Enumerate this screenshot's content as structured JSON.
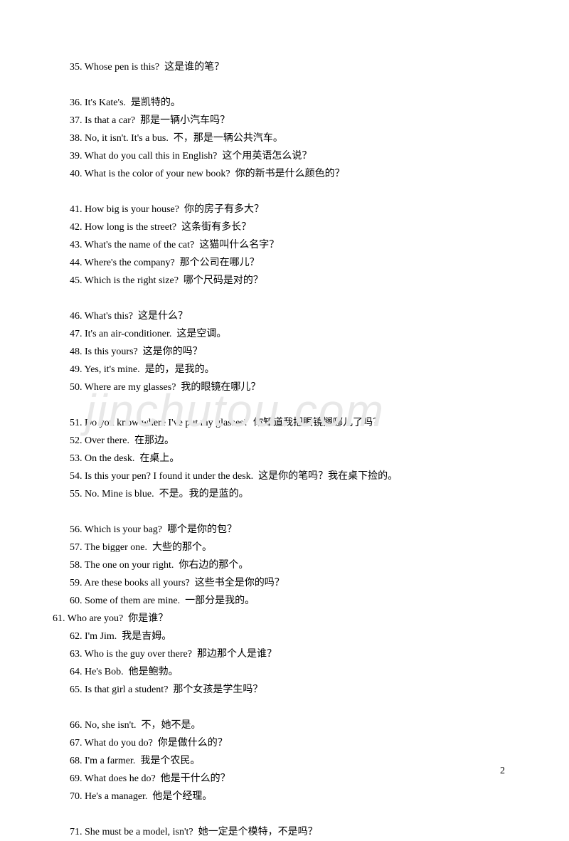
{
  "watermark": "jinchutou.com",
  "pageNumber": "2",
  "groups": [
    {
      "lines": [
        {
          "text": "35. Whose pen is this?  这是谁的笔？",
          "indent": true
        }
      ]
    },
    {
      "lines": [
        {
          "text": "36. It's Kate's.  是凯特的。",
          "indent": true
        },
        {
          "text": "37. Is that a car?  那是一辆小汽车吗？",
          "indent": true
        },
        {
          "text": "38. No, it isn't. It's a bus.  不，那是一辆公共汽车。",
          "indent": true
        },
        {
          "text": "39. What do you call this in English?  这个用英语怎么说？",
          "indent": true
        },
        {
          "text": "40. What is the color of your new book?  你的新书是什么颜色的？",
          "indent": true
        }
      ]
    },
    {
      "lines": [
        {
          "text": "41. How big is your house?  你的房子有多大？",
          "indent": true
        },
        {
          "text": "42. How long is the street?  这条街有多长？",
          "indent": true
        },
        {
          "text": "43. What's the name of the cat?  这猫叫什么名字？",
          "indent": true
        },
        {
          "text": "44. Where's the company?  那个公司在哪儿？",
          "indent": true
        },
        {
          "text": "45. Which is the right size?  哪个尺码是对的？",
          "indent": true
        }
      ]
    },
    {
      "lines": [
        {
          "text": "46. What's this?  这是什么？",
          "indent": true
        },
        {
          "text": "47. It's an air-conditioner.  这是空调。",
          "indent": true
        },
        {
          "text": "48. Is this yours?  这是你的吗？",
          "indent": true
        },
        {
          "text": "49. Yes, it's mine.  是的，是我的。",
          "indent": true
        },
        {
          "text": "50. Where are my glasses?  我的眼镜在哪儿？",
          "indent": true
        }
      ]
    },
    {
      "lines": [
        {
          "text": "51. Do you know where I've put my glasses?  你知道我把眼镜搁哪儿了吗？",
          "indent": true
        },
        {
          "text": "52. Over there.  在那边。",
          "indent": true
        },
        {
          "text": "53. On the desk.  在桌上。",
          "indent": true
        },
        {
          "text": "54. Is this your pen? I found it under the desk.  这是你的笔吗？我在桌下捡的。",
          "indent": true
        },
        {
          "text": "55. No. Mine is blue.  不是。我的是蓝的。",
          "indent": true
        }
      ]
    },
    {
      "lines": [
        {
          "text": "56. Which is your bag?  哪个是你的包？",
          "indent": true
        },
        {
          "text": "57. The bigger one.  大些的那个。",
          "indent": true
        },
        {
          "text": "58. The one on your right.  你右边的那个。",
          "indent": true
        },
        {
          "text": "59. Are these books all yours?  这些书全是你的吗？",
          "indent": true
        },
        {
          "text": "60. Some of them are mine.  一部分是我的。",
          "indent": true
        },
        {
          "text": "61. Who are you?  你是谁？",
          "indent": false
        },
        {
          "text": "62. I'm Jim.  我是吉姆。",
          "indent": true
        },
        {
          "text": "63. Who is the guy over there?  那边那个人是谁？",
          "indent": true
        },
        {
          "text": "64. He's Bob.  他是鲍勃。",
          "indent": true
        },
        {
          "text": "65. Is that girl a student?  那个女孩是学生吗？",
          "indent": true
        }
      ]
    },
    {
      "lines": [
        {
          "text": "66. No, she isn't.  不，她不是。",
          "indent": true
        },
        {
          "text": "67. What do you do?  你是做什么的？",
          "indent": true
        },
        {
          "text": "68. I'm a farmer.  我是个农民。",
          "indent": true
        },
        {
          "text": "69. What does he do?  他是干什么的？",
          "indent": true
        },
        {
          "text": "70. He's a manager.  他是个经理。",
          "indent": true
        }
      ]
    },
    {
      "lines": [
        {
          "text": "71. She must be a model, isn't?  她一定是个模特，不是吗？",
          "indent": true
        }
      ]
    }
  ]
}
